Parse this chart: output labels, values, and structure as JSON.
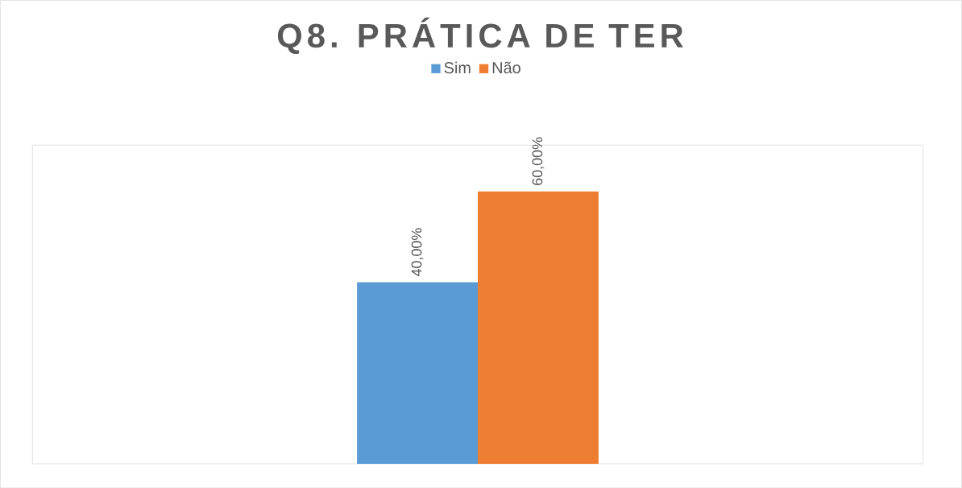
{
  "chart_data": {
    "type": "bar",
    "title": "Q8. PRÁTICA DE TER",
    "categories": [
      null
    ],
    "series": [
      {
        "name": "Sim",
        "color": "#5b9bd5",
        "values": [
          40
        ],
        "value_labels": [
          "40,00%"
        ]
      },
      {
        "name": "Não",
        "color": "#ed7d31",
        "values": [
          60
        ],
        "value_labels": [
          "60,00%"
        ]
      }
    ],
    "tick_labels": false,
    "legend": "top"
  }
}
